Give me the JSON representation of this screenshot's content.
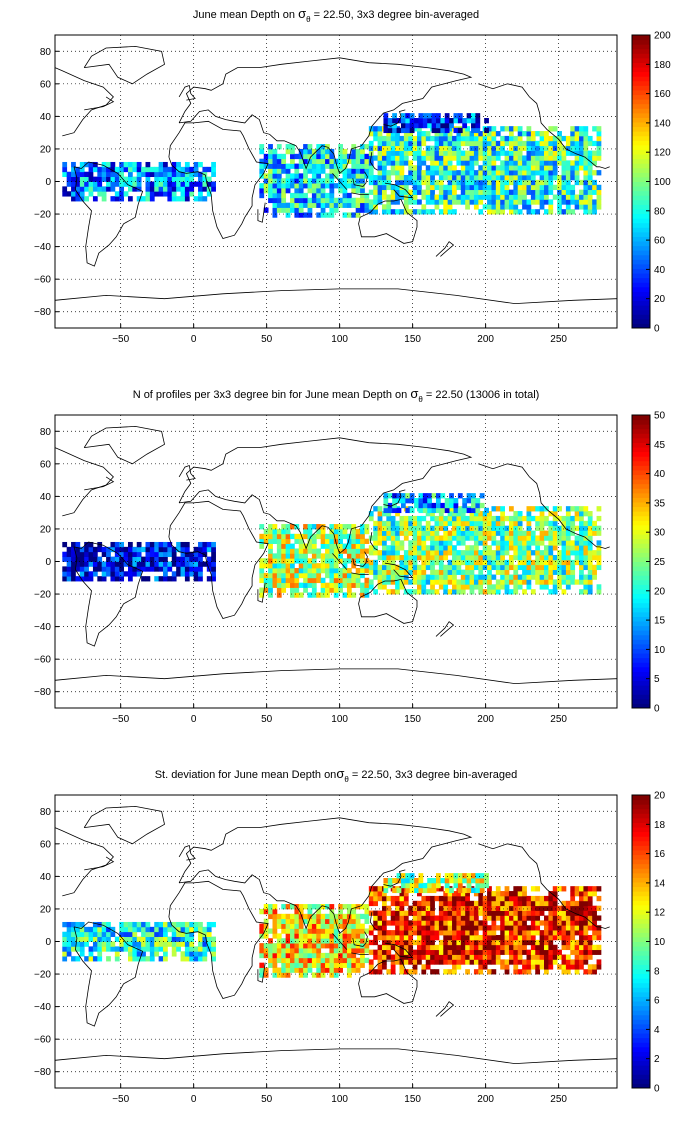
{
  "chart_data": [
    {
      "type": "heatmap",
      "title_prefix": "June mean Depth on ",
      "title_symbol": "σ",
      "title_subscript": "θ",
      "title_suffix": " = 22.50, 3x3 degree bin-averaged",
      "x_ticks": [
        -50,
        0,
        50,
        100,
        150,
        200,
        250
      ],
      "y_ticks": [
        80,
        60,
        40,
        20,
        0,
        -20,
        -40,
        -60,
        -80
      ],
      "xlim": [
        -95,
        290
      ],
      "ylim": [
        -90,
        90
      ],
      "grid": true,
      "colorbar": {
        "min": 0,
        "max": 200,
        "ticks": [
          0,
          20,
          40,
          60,
          80,
          100,
          120,
          140,
          160,
          180,
          200
        ],
        "colormap": "jet"
      },
      "regions": [
        {
          "name": "Tropical Atlantic",
          "lon": [
            -90,
            15
          ],
          "lat": [
            -12,
            12
          ],
          "level": 0.25
        },
        {
          "name": "Indian Ocean",
          "lon": [
            45,
            120
          ],
          "lat": [
            -22,
            22
          ],
          "level": 0.35
        },
        {
          "name": "Tropical Pacific",
          "lon": [
            120,
            278
          ],
          "lat": [
            -20,
            32
          ],
          "level": 0.42
        },
        {
          "name": "Kuroshio Extension",
          "lon": [
            130,
            200
          ],
          "lat": [
            30,
            42
          ],
          "level": 0.15
        }
      ]
    },
    {
      "type": "heatmap",
      "title_prefix": "N of profiles per 3x3 degree bin for June mean Depth on ",
      "title_symbol": "σ",
      "title_subscript": "θ",
      "title_suffix": " = 22.50 (13006 in total)",
      "x_ticks": [
        -50,
        0,
        50,
        100,
        150,
        200,
        250
      ],
      "y_ticks": [
        80,
        60,
        40,
        20,
        0,
        -20,
        -40,
        -60,
        -80
      ],
      "xlim": [
        -95,
        290
      ],
      "ylim": [
        -90,
        90
      ],
      "grid": true,
      "colorbar": {
        "min": 0,
        "max": 50,
        "ticks": [
          0,
          5,
          10,
          15,
          20,
          25,
          30,
          35,
          40,
          45,
          50
        ],
        "colormap": "jet"
      },
      "regions": [
        {
          "name": "Tropical Atlantic",
          "lon": [
            -90,
            15
          ],
          "lat": [
            -12,
            12
          ],
          "level": 0.1
        },
        {
          "name": "Indian Ocean",
          "lon": [
            45,
            120
          ],
          "lat": [
            -22,
            22
          ],
          "level": 0.55
        },
        {
          "name": "Tropical Pacific",
          "lon": [
            120,
            278
          ],
          "lat": [
            -20,
            32
          ],
          "level": 0.5
        },
        {
          "name": "Kuroshio Extension",
          "lon": [
            130,
            200
          ],
          "lat": [
            30,
            42
          ],
          "level": 0.3
        }
      ]
    },
    {
      "type": "heatmap",
      "title_prefix": "St. deviation for June mean Depth on",
      "title_symbol": "σ",
      "title_subscript": "θ",
      "title_suffix": " = 22.50, 3x3 degree bin-averaged",
      "x_ticks": [
        -50,
        0,
        50,
        100,
        150,
        200,
        250
      ],
      "y_ticks": [
        80,
        60,
        40,
        20,
        0,
        -20,
        -40,
        -60,
        -80
      ],
      "xlim": [
        -95,
        290
      ],
      "ylim": [
        -90,
        90
      ],
      "grid": true,
      "colorbar": {
        "min": 0,
        "max": 20,
        "ticks": [
          0,
          2,
          4,
          6,
          8,
          10,
          12,
          14,
          16,
          18,
          20
        ],
        "colormap": "jet"
      },
      "regions": [
        {
          "name": "Tropical Atlantic",
          "lon": [
            -90,
            15
          ],
          "lat": [
            -12,
            12
          ],
          "level": 0.4
        },
        {
          "name": "Indian Ocean",
          "lon": [
            45,
            120
          ],
          "lat": [
            -22,
            22
          ],
          "level": 0.65
        },
        {
          "name": "Tropical Pacific",
          "lon": [
            120,
            278
          ],
          "lat": [
            -20,
            32
          ],
          "level": 0.85
        },
        {
          "name": "Kuroshio Extension",
          "lon": [
            130,
            200
          ],
          "lat": [
            30,
            42
          ],
          "level": 0.55
        }
      ]
    }
  ]
}
